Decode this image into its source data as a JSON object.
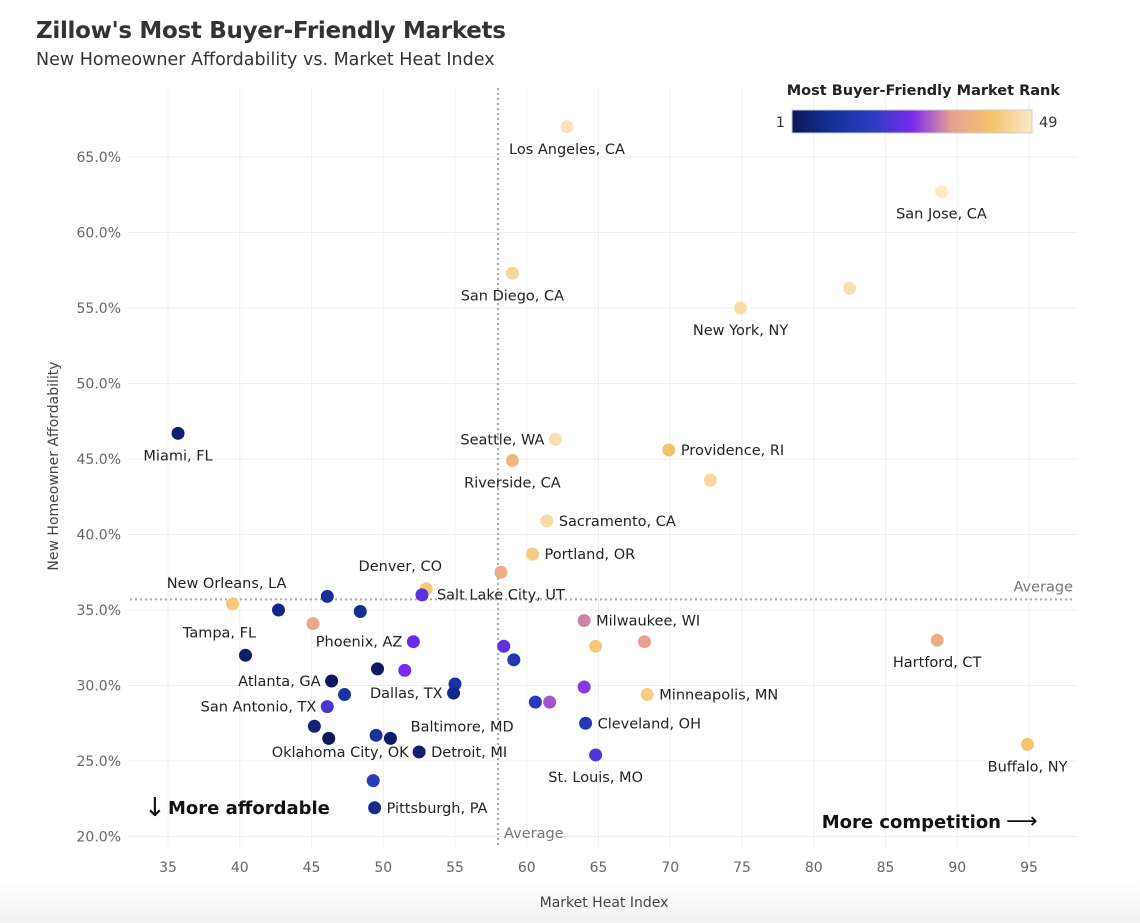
{
  "chart_data": {
    "type": "scatter",
    "title": "Zillow's Most Buyer-Friendly Markets",
    "subtitle": "New Homeowner Affordability vs. Market Heat Index",
    "xlabel": "Market Heat Index",
    "ylabel": "New Homeowner Affordability",
    "xlim": [
      32,
      99
    ],
    "ylim": [
      18.7,
      69
    ],
    "x_ticks": [
      35,
      40,
      45,
      50,
      55,
      60,
      65,
      70,
      75,
      80,
      85,
      90,
      95
    ],
    "y_ticks": [
      20,
      25,
      30,
      35,
      40,
      45,
      50,
      55,
      60,
      65
    ],
    "y_tick_labels": [
      "20.0%",
      "25.0%",
      "30.0%",
      "35.0%",
      "40.0%",
      "45.0%",
      "50.0%",
      "55.0%",
      "60.0%",
      "65.0%"
    ],
    "grid": true,
    "average_x": 58.0,
    "average_y": 35.7,
    "average_label": "Average",
    "annotations": {
      "more_affordable": "More affordable",
      "more_competition": "More competition",
      "down_arrow": "↓",
      "right_arrow": "⟶"
    },
    "legend": {
      "title": "Most Buyer-Friendly Market Rank",
      "min_label": "1",
      "max_label": "49",
      "placement": "top-right",
      "colors": [
        "#0c1757",
        "#15309a",
        "#2a3cc0",
        "#7a2af0",
        "#e8a090",
        "#f4c46c",
        "#fbe9c9"
      ]
    },
    "points": [
      {
        "label": "Los Angeles, CA",
        "x": 62.8,
        "y": 67.0,
        "rank": 48,
        "label_pos": "below"
      },
      {
        "label": "San Jose, CA",
        "x": 88.9,
        "y": 62.7,
        "rank": 49,
        "label_pos": "below"
      },
      {
        "label": "San Diego, CA",
        "x": 59.0,
        "y": 57.3,
        "rank": 45,
        "label_pos": "below"
      },
      {
        "label": "",
        "x": 82.5,
        "y": 56.3,
        "rank": 47,
        "label_pos": "none"
      },
      {
        "label": "New York, NY",
        "x": 74.9,
        "y": 55.0,
        "rank": 46,
        "label_pos": "below"
      },
      {
        "label": "Miami, FL",
        "x": 35.7,
        "y": 46.7,
        "rank": 4,
        "label_pos": "below"
      },
      {
        "label": "Seattle, WA",
        "x": 62.0,
        "y": 46.3,
        "rank": 47,
        "label_pos": "left"
      },
      {
        "label": "Providence, RI",
        "x": 69.9,
        "y": 45.6,
        "rank": 41,
        "label_pos": "right"
      },
      {
        "label": "Riverside, CA",
        "x": 59.0,
        "y": 44.9,
        "rank": 38,
        "label_pos": "below"
      },
      {
        "label": "",
        "x": 72.8,
        "y": 43.6,
        "rank": 45,
        "label_pos": "none"
      },
      {
        "label": "Sacramento, CA",
        "x": 61.4,
        "y": 40.9,
        "rank": 46,
        "label_pos": "right"
      },
      {
        "label": "Portland, OR",
        "x": 60.4,
        "y": 38.7,
        "rank": 43,
        "label_pos": "right"
      },
      {
        "label": "Salt Lake City, UT",
        "x": 58.2,
        "y": 37.5,
        "rank": 36,
        "label_pos": "below"
      },
      {
        "label": "Denver, CO",
        "x": 53.0,
        "y": 36.4,
        "rank": 42,
        "label_pos": "above-left"
      },
      {
        "label": "",
        "x": 52.7,
        "y": 36.0,
        "rank": 22,
        "label_pos": "none"
      },
      {
        "label": "New Orleans, LA",
        "x": 39.5,
        "y": 35.4,
        "rank": 42,
        "label_pos": "above"
      },
      {
        "label": "",
        "x": 46.1,
        "y": 35.9,
        "rank": 9,
        "label_pos": "none"
      },
      {
        "label": "",
        "x": 42.7,
        "y": 35.0,
        "rank": 6,
        "label_pos": "none"
      },
      {
        "label": "",
        "x": 48.4,
        "y": 34.9,
        "rank": 8,
        "label_pos": "none"
      },
      {
        "label": "",
        "x": 45.1,
        "y": 34.1,
        "rank": 35,
        "label_pos": "none"
      },
      {
        "label": "Milwaukee, WI",
        "x": 64.0,
        "y": 34.3,
        "rank": 31,
        "label_pos": "right"
      },
      {
        "label": "Phoenix, AZ",
        "x": 52.1,
        "y": 32.9,
        "rank": 23,
        "label_pos": "left"
      },
      {
        "label": "",
        "x": 68.2,
        "y": 32.9,
        "rank": 33,
        "label_pos": "none"
      },
      {
        "label": "Hartford, CT",
        "x": 88.6,
        "y": 33.0,
        "rank": 36,
        "label_pos": "below"
      },
      {
        "label": "",
        "x": 58.4,
        "y": 32.6,
        "rank": 22,
        "label_pos": "none"
      },
      {
        "label": "",
        "x": 64.8,
        "y": 32.6,
        "rank": 42,
        "label_pos": "none"
      },
      {
        "label": "Tampa, FL",
        "x": 40.4,
        "y": 32.0,
        "rank": 3,
        "label_pos": "above-left"
      },
      {
        "label": "",
        "x": 59.1,
        "y": 31.7,
        "rank": 14,
        "label_pos": "none"
      },
      {
        "label": "",
        "x": 49.6,
        "y": 31.1,
        "rank": 2,
        "label_pos": "none"
      },
      {
        "label": "",
        "x": 51.5,
        "y": 31.0,
        "rank": 25,
        "label_pos": "none"
      },
      {
        "label": "Atlanta, GA",
        "x": 46.4,
        "y": 30.3,
        "rank": 1,
        "label_pos": "left"
      },
      {
        "label": "",
        "x": 55.0,
        "y": 30.1,
        "rank": 10,
        "label_pos": "none"
      },
      {
        "label": "",
        "x": 64.0,
        "y": 29.9,
        "rank": 26,
        "label_pos": "none"
      },
      {
        "label": "Dallas, TX",
        "x": 54.9,
        "y": 29.5,
        "rank": 7,
        "label_pos": "left"
      },
      {
        "label": "",
        "x": 47.3,
        "y": 29.4,
        "rank": 11,
        "label_pos": "none"
      },
      {
        "label": "Minneapolis, MN",
        "x": 68.4,
        "y": 29.4,
        "rank": 43,
        "label_pos": "right"
      },
      {
        "label": "",
        "x": 60.6,
        "y": 28.9,
        "rank": 16,
        "label_pos": "none"
      },
      {
        "label": "",
        "x": 61.6,
        "y": 28.9,
        "rank": 28,
        "label_pos": "none"
      },
      {
        "label": "San Antonio, TX",
        "x": 46.1,
        "y": 28.6,
        "rank": 20,
        "label_pos": "left"
      },
      {
        "label": "Baltimore, MD",
        "x": 55.5,
        "y": 27.3,
        "rank": 0,
        "label_pos": "text-only"
      },
      {
        "label": "Cleveland, OH",
        "x": 64.1,
        "y": 27.5,
        "rank": 15,
        "label_pos": "right"
      },
      {
        "label": "",
        "x": 45.2,
        "y": 27.3,
        "rank": 5,
        "label_pos": "none"
      },
      {
        "label": "",
        "x": 46.2,
        "y": 26.5,
        "rank": 1,
        "label_pos": "none"
      },
      {
        "label": "",
        "x": 49.5,
        "y": 26.7,
        "rank": 10,
        "label_pos": "none"
      },
      {
        "label": "",
        "x": 50.5,
        "y": 26.5,
        "rank": 3,
        "label_pos": "none"
      },
      {
        "label": "Oklahoma City, OK",
        "x": 47.0,
        "y": 25.6,
        "rank": 0,
        "label_pos": "text-only"
      },
      {
        "label": "Detroit, MI",
        "x": 52.5,
        "y": 25.6,
        "rank": 4,
        "label_pos": "right"
      },
      {
        "label": "Buffalo, NY",
        "x": 94.9,
        "y": 26.1,
        "rank": 41,
        "label_pos": "below"
      },
      {
        "label": "St. Louis, MO",
        "x": 64.8,
        "y": 25.4,
        "rank": 21,
        "label_pos": "below"
      },
      {
        "label": "",
        "x": 49.3,
        "y": 23.7,
        "rank": 16,
        "label_pos": "none"
      },
      {
        "label": "Pittsburgh, PA",
        "x": 49.4,
        "y": 21.9,
        "rank": 8,
        "label_pos": "right"
      }
    ]
  }
}
